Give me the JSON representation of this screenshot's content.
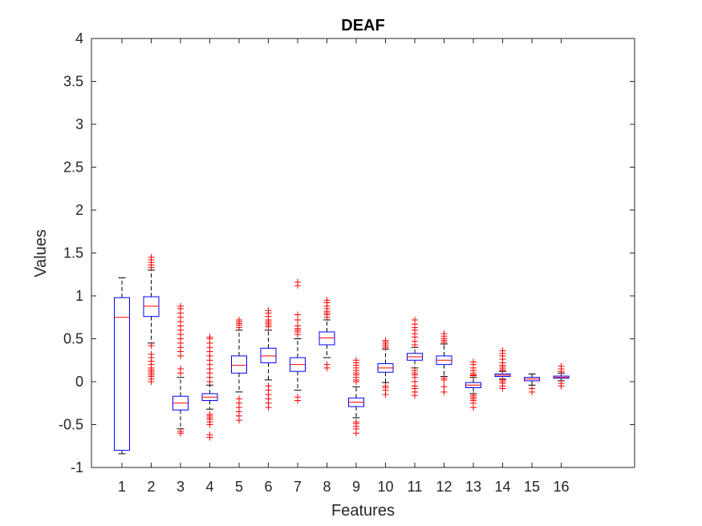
{
  "chart_data": {
    "type": "boxplot",
    "title": "DEAF",
    "xlabel": "Features",
    "ylabel": "Values",
    "ylim": [
      -1,
      4
    ],
    "yticks": [
      "-1",
      "-0.5",
      "0",
      "0.5",
      "1",
      "1.5",
      "2",
      "2.5",
      "3",
      "3.5",
      "4"
    ],
    "categories": [
      "1",
      "2",
      "3",
      "4",
      "5",
      "6",
      "7",
      "8",
      "9",
      "10",
      "11",
      "12",
      "13",
      "14",
      "15",
      "16"
    ],
    "colors": {
      "box": "#0000ff",
      "median": "#ff0000",
      "whisker": "#000000",
      "outlier": "#ff0000",
      "axis": "#262626"
    },
    "boxes": [
      {
        "q1": -0.8,
        "median": 0.75,
        "q3": 0.98,
        "whisker_low": -0.84,
        "whisker_high": 1.21,
        "outliers": []
      },
      {
        "q1": 0.76,
        "median": 0.88,
        "q3": 0.99,
        "whisker_low": 0.45,
        "whisker_high": 1.3,
        "outliers": [
          0.0,
          0.03,
          0.06,
          0.08,
          0.1,
          0.12,
          0.14,
          0.16,
          0.2,
          0.24,
          0.28,
          0.32,
          0.42,
          1.33,
          1.36,
          1.39,
          1.42,
          1.45
        ]
      },
      {
        "q1": -0.33,
        "median": -0.25,
        "q3": -0.17,
        "whisker_low": -0.55,
        "whisker_high": 0.05,
        "outliers": [
          -0.6,
          -0.58,
          0.1,
          0.15,
          0.3,
          0.35,
          0.4,
          0.45,
          0.5,
          0.55,
          0.6,
          0.65,
          0.7,
          0.75,
          0.8,
          0.85,
          0.88
        ]
      },
      {
        "q1": -0.22,
        "median": -0.18,
        "q3": -0.14,
        "whisker_low": -0.32,
        "whisker_high": -0.04,
        "outliers": [
          -0.65,
          -0.62,
          -0.5,
          -0.47,
          -0.44,
          -0.42,
          -0.4,
          -0.38,
          0.0,
          0.05,
          0.1,
          0.15,
          0.2,
          0.25,
          0.3,
          0.35,
          0.4,
          0.45,
          0.5,
          0.52
        ]
      },
      {
        "q1": 0.1,
        "median": 0.19,
        "q3": 0.3,
        "whisker_low": -0.12,
        "whisker_high": 0.6,
        "outliers": [
          -0.45,
          -0.4,
          -0.35,
          -0.3,
          -0.25,
          -0.2,
          0.63,
          0.66,
          0.68,
          0.7,
          0.72
        ]
      },
      {
        "q1": 0.22,
        "median": 0.3,
        "q3": 0.39,
        "whisker_low": 0.02,
        "whisker_high": 0.6,
        "outliers": [
          -0.3,
          -0.25,
          -0.2,
          -0.15,
          -0.1,
          -0.05,
          0.64,
          0.66,
          0.68,
          0.7,
          0.72,
          0.76,
          0.8,
          0.83
        ]
      },
      {
        "q1": 0.12,
        "median": 0.2,
        "q3": 0.28,
        "whisker_low": -0.1,
        "whisker_high": 0.5,
        "outliers": [
          -0.22,
          -0.18,
          0.55,
          0.58,
          0.6,
          0.62,
          0.65,
          0.72,
          0.78,
          1.12,
          1.16
        ]
      },
      {
        "q1": 0.43,
        "median": 0.51,
        "q3": 0.58,
        "whisker_low": 0.28,
        "whisker_high": 0.72,
        "outliers": [
          0.16,
          0.2,
          0.75,
          0.78,
          0.8,
          0.82,
          0.85,
          0.88,
          0.92,
          0.95
        ]
      },
      {
        "q1": -0.29,
        "median": -0.24,
        "q3": -0.19,
        "whisker_low": -0.42,
        "whisker_high": -0.06,
        "outliers": [
          -0.6,
          -0.55,
          -0.52,
          -0.49,
          -0.47,
          0.0,
          0.02,
          0.05,
          0.08,
          0.1,
          0.13,
          0.16,
          0.19,
          0.22,
          0.25
        ]
      },
      {
        "q1": 0.11,
        "median": 0.16,
        "q3": 0.21,
        "whisker_low": -0.01,
        "whisker_high": 0.38,
        "outliers": [
          -0.15,
          -0.1,
          -0.07,
          -0.05,
          0.4,
          0.42,
          0.44,
          0.46,
          0.48
        ]
      },
      {
        "q1": 0.25,
        "median": 0.29,
        "q3": 0.33,
        "whisker_low": 0.16,
        "whisker_high": 0.4,
        "outliers": [
          -0.16,
          -0.12,
          -0.08,
          -0.05,
          0.0,
          0.05,
          0.08,
          0.1,
          0.13,
          0.43,
          0.47,
          0.52,
          0.56,
          0.6,
          0.63,
          0.67,
          0.72
        ]
      },
      {
        "q1": 0.2,
        "median": 0.25,
        "q3": 0.3,
        "whisker_low": 0.06,
        "whisker_high": 0.44,
        "outliers": [
          -0.12,
          -0.06,
          0.02,
          0.04,
          0.46,
          0.48,
          0.5,
          0.53,
          0.56
        ]
      },
      {
        "q1": -0.07,
        "median": -0.04,
        "q3": -0.01,
        "whisker_low": -0.14,
        "whisker_high": 0.05,
        "outliers": [
          -0.3,
          -0.25,
          -0.22,
          -0.2,
          -0.18,
          -0.16,
          0.07,
          0.08,
          0.1,
          0.13,
          0.16,
          0.2,
          0.23
        ]
      },
      {
        "q1": 0.06,
        "median": 0.075,
        "q3": 0.09,
        "whisker_low": 0.03,
        "whisker_high": 0.12,
        "outliers": [
          -0.08,
          -0.05,
          -0.02,
          0.0,
          0.02,
          0.13,
          0.15,
          0.17,
          0.19,
          0.22,
          0.26,
          0.3,
          0.33,
          0.36
        ]
      },
      {
        "q1": 0.01,
        "median": 0.03,
        "q3": 0.05,
        "whisker_low": -0.04,
        "whisker_high": 0.09,
        "outliers": [
          -0.12,
          -0.08
        ]
      },
      {
        "q1": 0.04,
        "median": 0.05,
        "q3": 0.065,
        "whisker_low": 0.01,
        "whisker_high": 0.1,
        "outliers": [
          -0.05,
          -0.02,
          0.12,
          0.15,
          0.18
        ]
      }
    ]
  }
}
